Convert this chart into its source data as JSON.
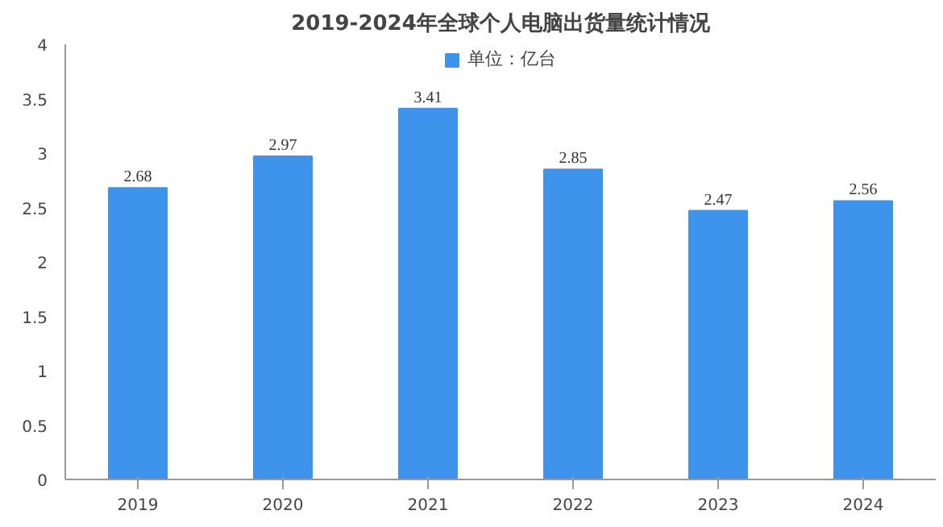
{
  "chart_data": {
    "type": "bar",
    "title": "2019-2024年全球个人电脑出货量统计情况",
    "categories": [
      "2019",
      "2020",
      "2021",
      "2022",
      "2023",
      "2024"
    ],
    "series": [
      {
        "name": "单位：亿台",
        "color": "#3d94ea",
        "values": [
          2.68,
          2.97,
          3.41,
          2.85,
          2.47,
          2.56
        ]
      }
    ],
    "ylim": [
      0,
      4
    ],
    "yticks": [
      0,
      0.5,
      1,
      1.5,
      2,
      2.5,
      3,
      3.5,
      4
    ],
    "data_labels": true,
    "legend": "top",
    "grid": false
  }
}
